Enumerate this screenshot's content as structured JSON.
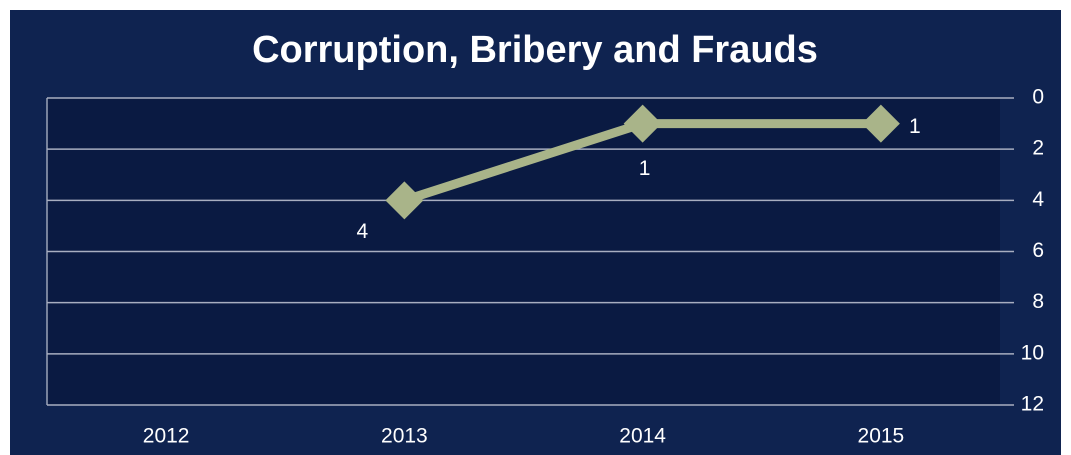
{
  "chart_data": {
    "type": "line",
    "title": "Corruption, Bribery and Frauds",
    "categories": [
      "2012",
      "2013",
      "2014",
      "2015"
    ],
    "series": [
      {
        "name": "Corruption, Bribery and Frauds",
        "color": "#a9b489",
        "values": [
          null,
          4,
          1,
          1
        ]
      }
    ],
    "ylim": [
      0,
      12
    ],
    "yticks": [
      0,
      2,
      4,
      6,
      8,
      10,
      12
    ],
    "y_reversed": true,
    "y_axis_side": "right",
    "grid": true
  }
}
